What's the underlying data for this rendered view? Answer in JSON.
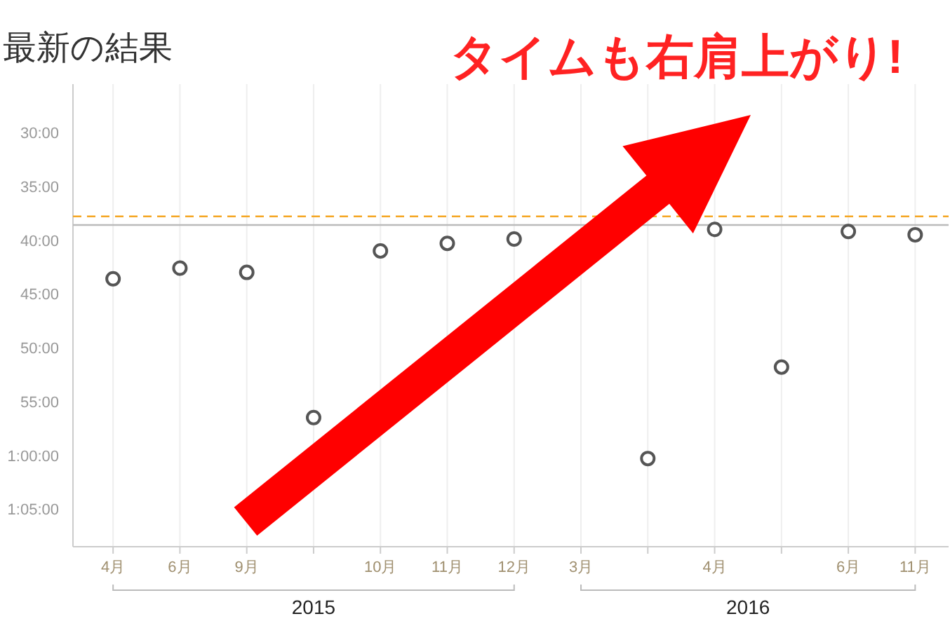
{
  "chart_data": {
    "type": "scatter",
    "title": "最新の結果",
    "categories": [
      "4月",
      "6月",
      "9月",
      null,
      "10月",
      "11月",
      "12月",
      "3月",
      null,
      "4月",
      null,
      "6月",
      "11月"
    ],
    "values": [
      43.6,
      42.6,
      43.0,
      56.5,
      41.0,
      40.3,
      39.9,
      null,
      60.3,
      39.0,
      51.8,
      39.2,
      39.5
    ],
    "color": "#555555",
    "marker": "circle",
    "grid": "x",
    "ylim": [
      68.5,
      25.5
    ],
    "yticks": [
      {
        "value": 30,
        "label": "30:00"
      },
      {
        "value": 35,
        "label": "35:00"
      },
      {
        "value": 40,
        "label": "40:00"
      },
      {
        "value": 45,
        "label": "45:00"
      },
      {
        "value": 50,
        "label": "50:00"
      },
      {
        "value": 55,
        "label": "55:00"
      },
      {
        "value": 60,
        "label": "1:00:00"
      },
      {
        "value": 65,
        "label": "1:05:00"
      }
    ],
    "ref_lines": [
      {
        "axis": "y",
        "value": 37.8,
        "color": "#f5a623",
        "line_style": "dashed"
      },
      {
        "axis": "y",
        "value": 38.6,
        "color": "#bbbbbb",
        "line_style": "solid"
      }
    ],
    "annotations": [
      "タイムも右肩上がり!",
      "2015",
      "2016"
    ]
  }
}
